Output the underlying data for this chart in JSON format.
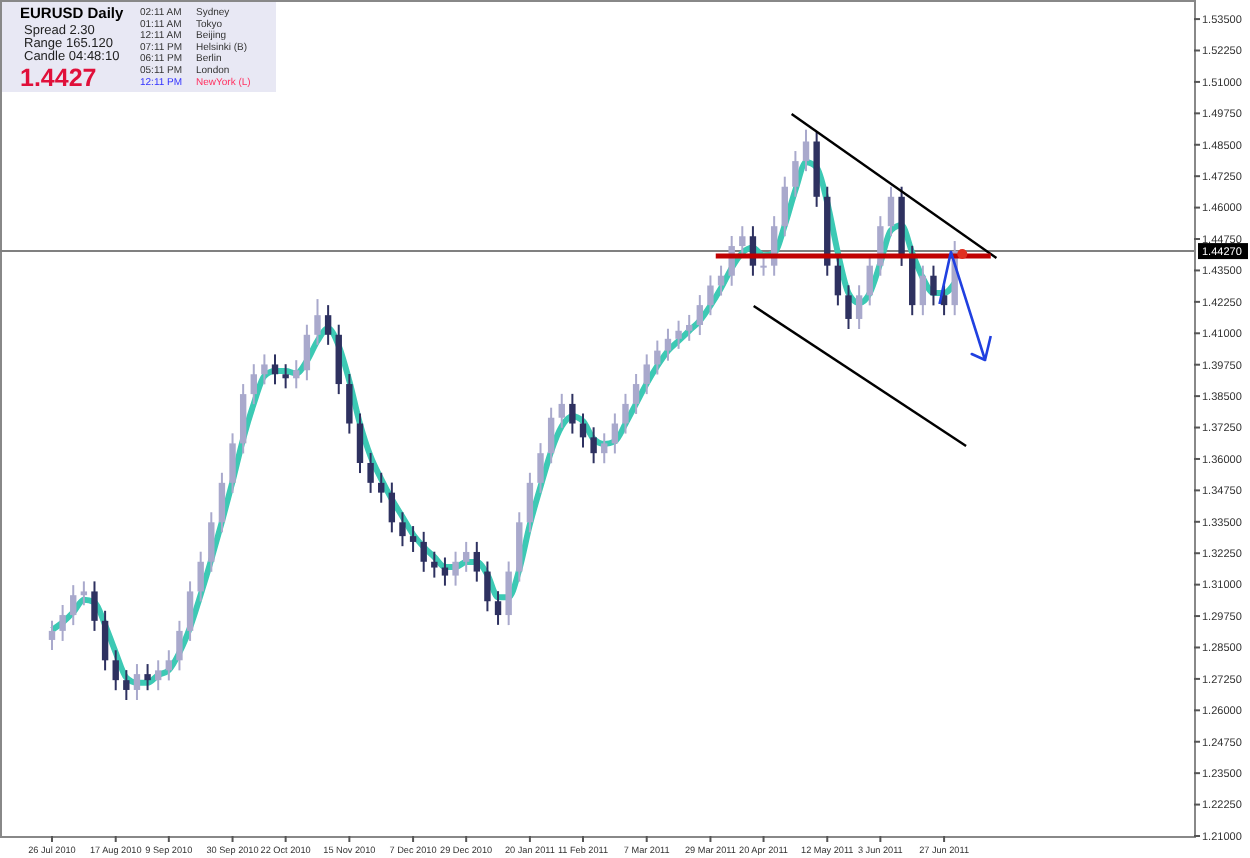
{
  "chart_data": {
    "type": "candlestick",
    "title": "EURUSD Daily",
    "annotations": [
      "Spread 2.30",
      "Range 165.120",
      "Candle 04:48:10",
      "1.4427",
      "02:11 AM",
      "Sydney",
      "01:11 AM",
      "Tokyo",
      "12:11 AM",
      "Beijing",
      "07:11 PM",
      "Helsinki (B)",
      "06:11 PM",
      "Berlin",
      "05:11 PM",
      "London",
      "12:11 PM",
      "NewYork (L)"
    ],
    "categories": [
      "26 Jul 2010",
      null,
      null,
      null,
      null,
      null,
      "17 Aug 2010",
      null,
      null,
      null,
      null,
      "9 Sep 2010",
      null,
      null,
      null,
      null,
      null,
      "30 Sep 2010",
      null,
      null,
      null,
      null,
      "22 Oct 2010",
      null,
      null,
      null,
      null,
      null,
      "15 Nov 2010",
      null,
      null,
      null,
      null,
      null,
      "7 Dec 2010",
      null,
      null,
      null,
      null,
      "29 Dec 2010",
      null,
      null,
      null,
      null,
      null,
      "20 Jan 2011",
      null,
      null,
      null,
      null,
      "11 Feb 2011",
      null,
      null,
      null,
      null,
      null,
      "7 Mar 2011",
      null,
      null,
      null,
      null,
      null,
      "29 Mar 2011",
      null,
      null,
      null,
      null,
      "20 Apr 2011",
      null,
      null,
      null,
      null,
      null,
      "12 May 2011",
      null,
      null,
      null,
      null,
      "3 Jun 2011",
      null,
      null,
      null,
      null,
      null,
      "27 Jun 2011",
      null
    ],
    "ohlc": [
      [
        1.288,
        1.2956,
        1.284,
        1.2916
      ],
      [
        1.2916,
        1.3019,
        1.2876,
        1.2979
      ],
      [
        1.2979,
        1.3098,
        1.2939,
        1.3058
      ],
      [
        1.3058,
        1.3113,
        1.3018,
        1.3073
      ],
      [
        1.3073,
        1.3113,
        1.2916,
        1.2956
      ],
      [
        1.2956,
        1.2996,
        1.2759,
        1.2799
      ],
      [
        1.2799,
        1.2839,
        1.268,
        1.272
      ],
      [
        1.272,
        1.276,
        1.2641,
        1.2681
      ],
      [
        1.2681,
        1.2784,
        1.2641,
        1.2744
      ],
      [
        1.2744,
        1.2784,
        1.268,
        1.272
      ],
      [
        1.272,
        1.2799,
        1.268,
        1.2759
      ],
      [
        1.2759,
        1.2839,
        1.2719,
        1.2799
      ],
      [
        1.2799,
        1.2956,
        1.2759,
        1.2916
      ],
      [
        1.2916,
        1.3113,
        1.2876,
        1.3073
      ],
      [
        1.3073,
        1.3231,
        1.3033,
        1.3191
      ],
      [
        1.3191,
        1.3388,
        1.3151,
        1.3348
      ],
      [
        1.3348,
        1.3545,
        1.3308,
        1.3505
      ],
      [
        1.3505,
        1.3702,
        1.3465,
        1.3662
      ],
      [
        1.3662,
        1.3898,
        1.3622,
        1.3858
      ],
      [
        1.3858,
        1.3977,
        1.3818,
        1.3937
      ],
      [
        1.3937,
        1.4016,
        1.3897,
        1.3976
      ],
      [
        1.3976,
        1.4016,
        1.3897,
        1.3937
      ],
      [
        1.3937,
        1.3977,
        1.3881,
        1.3921
      ],
      [
        1.3921,
        1.3993,
        1.3881,
        1.3953
      ],
      [
        1.3953,
        1.4134,
        1.3913,
        1.4094
      ],
      [
        1.4094,
        1.4236,
        1.4054,
        1.4172
      ],
      [
        1.4172,
        1.4212,
        1.4054,
        1.4094
      ],
      [
        1.4094,
        1.4134,
        1.3858,
        1.3898
      ],
      [
        1.3898,
        1.3938,
        1.3701,
        1.3741
      ],
      [
        1.3741,
        1.3781,
        1.3544,
        1.3584
      ],
      [
        1.3584,
        1.3624,
        1.3465,
        1.3505
      ],
      [
        1.3505,
        1.3545,
        1.3426,
        1.3466
      ],
      [
        1.3466,
        1.3506,
        1.3308,
        1.3348
      ],
      [
        1.3348,
        1.3388,
        1.3253,
        1.3293
      ],
      [
        1.3293,
        1.3333,
        1.323,
        1.327
      ],
      [
        1.327,
        1.331,
        1.3151,
        1.3191
      ],
      [
        1.3191,
        1.3231,
        1.3128,
        1.3168
      ],
      [
        1.3168,
        1.3208,
        1.3096,
        1.3136
      ],
      [
        1.3136,
        1.3231,
        1.3096,
        1.3191
      ],
      [
        1.3191,
        1.327,
        1.3151,
        1.323
      ],
      [
        1.323,
        1.327,
        1.3112,
        1.3152
      ],
      [
        1.3152,
        1.3192,
        1.2994,
        1.3034
      ],
      [
        1.3034,
        1.3074,
        1.294,
        1.2979
      ],
      [
        1.2979,
        1.3192,
        1.2939,
        1.3152
      ],
      [
        1.3152,
        1.3388,
        1.3112,
        1.3348
      ],
      [
        1.3348,
        1.3545,
        1.3308,
        1.3505
      ],
      [
        1.3505,
        1.3663,
        1.3465,
        1.3623
      ],
      [
        1.3623,
        1.3804,
        1.3583,
        1.3764
      ],
      [
        1.3764,
        1.3859,
        1.3724,
        1.3819
      ],
      [
        1.3819,
        1.3859,
        1.3701,
        1.3741
      ],
      [
        1.3741,
        1.3781,
        1.3646,
        1.3686
      ],
      [
        1.3686,
        1.3726,
        1.3583,
        1.3623
      ],
      [
        1.3623,
        1.3702,
        1.3583,
        1.3662
      ],
      [
        1.3662,
        1.3781,
        1.3622,
        1.3741
      ],
      [
        1.3741,
        1.3859,
        1.3701,
        1.3819
      ],
      [
        1.3819,
        1.3938,
        1.3779,
        1.3898
      ],
      [
        1.3898,
        1.4016,
        1.3858,
        1.3976
      ],
      [
        1.3976,
        1.4071,
        1.3936,
        1.4031
      ],
      [
        1.4031,
        1.4118,
        1.3991,
        1.4078
      ],
      [
        1.4078,
        1.415,
        1.4038,
        1.411
      ],
      [
        1.411,
        1.4173,
        1.407,
        1.4133
      ],
      [
        1.4133,
        1.4252,
        1.4093,
        1.4212
      ],
      [
        1.4212,
        1.433,
        1.4172,
        1.429
      ],
      [
        1.429,
        1.4369,
        1.425,
        1.4329
      ],
      [
        1.4329,
        1.4487,
        1.4289,
        1.4447
      ],
      [
        1.4447,
        1.4526,
        1.4407,
        1.4486
      ],
      [
        1.4486,
        1.4526,
        1.4329,
        1.4369
      ],
      [
        1.4369,
        1.4409,
        1.4329,
        1.4369
      ],
      [
        1.4369,
        1.4566,
        1.4329,
        1.4526
      ],
      [
        1.4526,
        1.4723,
        1.4486,
        1.4683
      ],
      [
        1.4683,
        1.4825,
        1.4643,
        1.4785
      ],
      [
        1.4785,
        1.491,
        1.4745,
        1.4863
      ],
      [
        1.4863,
        1.4903,
        1.4603,
        1.4643
      ],
      [
        1.4643,
        1.4683,
        1.4329,
        1.4369
      ],
      [
        1.4369,
        1.4409,
        1.4211,
        1.4251
      ],
      [
        1.4251,
        1.4291,
        1.4117,
        1.4157
      ],
      [
        1.4157,
        1.4291,
        1.4117,
        1.4251
      ],
      [
        1.4251,
        1.4409,
        1.4211,
        1.4369
      ],
      [
        1.4369,
        1.4566,
        1.4329,
        1.4526
      ],
      [
        1.4526,
        1.4683,
        1.4486,
        1.4643
      ],
      [
        1.4643,
        1.4683,
        1.4368,
        1.4408
      ],
      [
        1.4408,
        1.4448,
        1.4172,
        1.4212
      ],
      [
        1.4212,
        1.4369,
        1.4172,
        1.4329
      ],
      [
        1.4329,
        1.4369,
        1.4211,
        1.4251
      ],
      [
        1.4251,
        1.4291,
        1.4172,
        1.4212
      ],
      [
        1.4212,
        1.4467,
        1.4172,
        1.4427
      ]
    ],
    "series": [
      {
        "type": "line",
        "color": "#3cc9b4",
        "values": [
          1.292,
          1.295,
          1.299,
          1.304,
          1.303,
          1.294,
          1.283,
          1.273,
          1.271,
          1.271,
          1.274,
          1.276,
          1.283,
          1.293,
          1.306,
          1.32,
          1.335,
          1.351,
          1.368,
          1.382,
          1.393,
          1.395,
          1.395,
          1.394,
          1.399,
          1.407,
          1.412,
          1.405,
          1.391,
          1.374,
          1.361,
          1.352,
          1.344,
          1.337,
          1.33,
          1.325,
          1.321,
          1.317,
          1.317,
          1.319,
          1.319,
          1.314,
          1.305,
          1.305,
          1.316,
          1.334,
          1.349,
          1.363,
          1.373,
          1.377,
          1.375,
          1.368,
          1.366,
          1.367,
          1.374,
          1.382,
          1.39,
          1.397,
          1.403,
          1.407,
          1.411,
          1.415,
          1.421,
          1.428,
          1.436,
          1.442,
          1.444,
          1.441,
          1.442,
          1.453,
          1.467,
          1.478,
          1.476,
          1.462,
          1.442,
          1.426,
          1.422,
          1.426,
          1.438,
          1.451,
          1.453,
          1.442,
          1.432,
          1.426,
          1.426,
          1.43
        ]
      }
    ],
    "ylim": [
      1.21,
      1.541
    ],
    "yticks": [
      {
        "value": 1.21,
        "label": "1.21000"
      },
      {
        "value": 1.2225,
        "label": "1.22250"
      },
      {
        "value": 1.235,
        "label": "1.23500"
      },
      {
        "value": 1.2475,
        "label": "1.24750"
      },
      {
        "value": 1.26,
        "label": "1.26000"
      },
      {
        "value": 1.2725,
        "label": "1.27250"
      },
      {
        "value": 1.285,
        "label": "1.28500"
      },
      {
        "value": 1.2975,
        "label": "1.29750"
      },
      {
        "value": 1.31,
        "label": "1.31000"
      },
      {
        "value": 1.3225,
        "label": "1.32250"
      },
      {
        "value": 1.335,
        "label": "1.33500"
      },
      {
        "value": 1.3475,
        "label": "1.34750"
      },
      {
        "value": 1.36,
        "label": "1.36000"
      },
      {
        "value": 1.3725,
        "label": "1.37250"
      },
      {
        "value": 1.385,
        "label": "1.38500"
      },
      {
        "value": 1.3975,
        "label": "1.39750"
      },
      {
        "value": 1.41,
        "label": "1.41000"
      },
      {
        "value": 1.4225,
        "label": "1.42250"
      },
      {
        "value": 1.435,
        "label": "1.43500"
      },
      {
        "value": 1.4475,
        "label": "1.44750"
      },
      {
        "value": 1.46,
        "label": "1.46000"
      },
      {
        "value": 1.4725,
        "label": "1.47250"
      },
      {
        "value": 1.485,
        "label": "1.48500"
      },
      {
        "value": 1.4975,
        "label": "1.49750"
      },
      {
        "value": 1.51,
        "label": "1.51000"
      },
      {
        "value": 1.5225,
        "label": "1.52250"
      },
      {
        "value": 1.535,
        "label": "1.53500"
      }
    ],
    "ref_lines": [
      {
        "axis": "y",
        "value": 1.4427,
        "label": "1.44270",
        "color": "#808080"
      }
    ],
    "grid": false
  }
}
